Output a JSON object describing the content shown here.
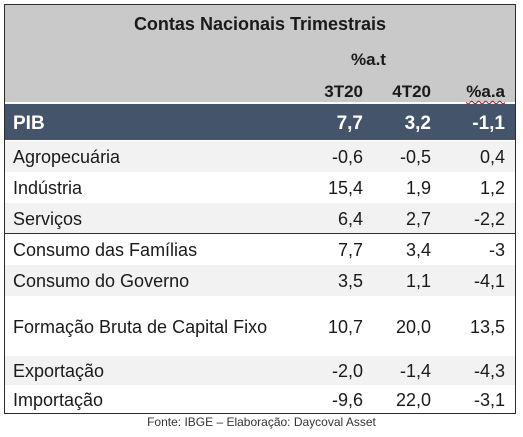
{
  "table": {
    "title": "Contas Nacionais Trimestrais",
    "unit": "%a.t",
    "columns": [
      "3T20",
      "4T20",
      "%a.a"
    ],
    "pib": {
      "label": "PIB",
      "values": [
        "7,7",
        "3,2",
        "-1,1"
      ]
    },
    "rows": [
      {
        "label": "Agropecuária",
        "values": [
          "-0,6",
          "-0,5",
          "0,4"
        ]
      },
      {
        "label": "Indústria",
        "values": [
          "15,4",
          "1,9",
          "1,2"
        ]
      },
      {
        "label": "Serviços",
        "values": [
          "6,4",
          "2,7",
          "-2,2"
        ]
      },
      {
        "label": "Consumo das Famílias",
        "values": [
          "7,7",
          "3,4",
          "-3"
        ]
      },
      {
        "label": "Consumo do Governo",
        "values": [
          "3,5",
          "1,1",
          "-4,1"
        ]
      },
      {
        "label": "Formação Bruta de Capital Fixo",
        "values": [
          "10,7",
          "20,0",
          "13,5"
        ]
      },
      {
        "label": "Exportação",
        "values": [
          "-2,0",
          "-1,4",
          "-4,3"
        ]
      },
      {
        "label": "Importação",
        "values": [
          "-9,6",
          "22,0",
          "-3,1"
        ]
      }
    ],
    "source": "Fonte: IBGE – Elaboração: Daycoval Asset"
  }
}
